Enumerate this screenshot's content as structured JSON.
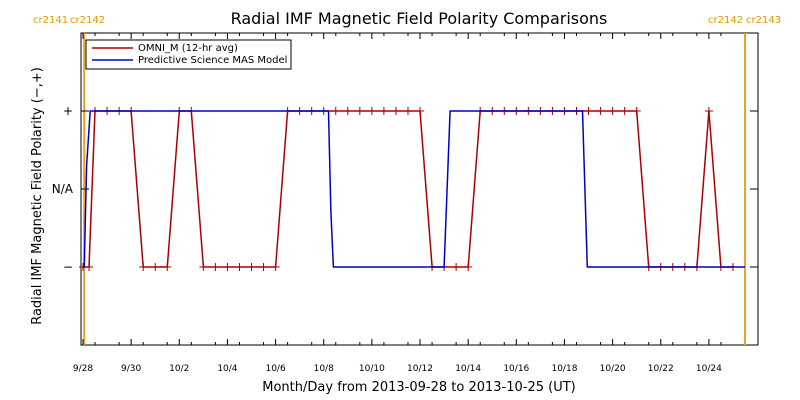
{
  "chart_data": {
    "type": "line",
    "title": "Radial IMF Magnetic Field Polarity Comparisons",
    "xlabel": "Month/Day from 2013-09-28 to 2013-10-25 (UT)",
    "ylabel": "Radial IMF Magnetic Field Polarity (−,+)",
    "x_unit": "day",
    "xlim": [
      0,
      27.75
    ],
    "ylim": [
      -2,
      2
    ],
    "x_ticks": [
      {
        "x": 0,
        "label": "9/28"
      },
      {
        "x": 2,
        "label": "9/30"
      },
      {
        "x": 4,
        "label": "10/2"
      },
      {
        "x": 6,
        "label": "10/4"
      },
      {
        "x": 8,
        "label": "10/6"
      },
      {
        "x": 10,
        "label": "10/8"
      },
      {
        "x": 12,
        "label": "10/10"
      },
      {
        "x": 14,
        "label": "10/12"
      },
      {
        "x": 16,
        "label": "10/14"
      },
      {
        "x": 18,
        "label": "10/16"
      },
      {
        "x": 20,
        "label": "10/18"
      },
      {
        "x": 22,
        "label": "10/20"
      },
      {
        "x": 24,
        "label": "10/22"
      },
      {
        "x": 26,
        "label": "10/24"
      }
    ],
    "y_ticks": [
      {
        "y": 1,
        "label": "+"
      },
      {
        "y": 0,
        "label": "N/A"
      },
      {
        "y": -1,
        "label": "−"
      }
    ],
    "carrington_markers": [
      {
        "x": 0.05,
        "left_label": "cr2141",
        "right_label": "cr2142"
      },
      {
        "x": 27.5,
        "left_label": "cr2142",
        "right_label": "cr2143"
      }
    ],
    "legend": {
      "placement": "top-left"
    },
    "series": [
      {
        "name": "OMNI_M (12-hr avg)",
        "color": "#aa0000",
        "markers": true,
        "points": [
          [
            0.0,
            -1
          ],
          [
            0.25,
            -1
          ],
          [
            0.5,
            1
          ],
          [
            1.0,
            1
          ],
          [
            1.5,
            1
          ],
          [
            2.0,
            1
          ],
          [
            2.5,
            -1
          ],
          [
            3.0,
            -1
          ],
          [
            3.5,
            -1
          ],
          [
            4.0,
            1
          ],
          [
            4.5,
            1
          ],
          [
            5.0,
            -1
          ],
          [
            5.5,
            -1
          ],
          [
            6.0,
            -1
          ],
          [
            6.5,
            -1
          ],
          [
            7.0,
            -1
          ],
          [
            7.5,
            -1
          ],
          [
            8.0,
            -1
          ],
          [
            8.5,
            1
          ],
          [
            9.0,
            1
          ],
          [
            9.5,
            1
          ],
          [
            10.0,
            1
          ],
          [
            10.5,
            1
          ],
          [
            11.0,
            1
          ],
          [
            11.5,
            1
          ],
          [
            12.0,
            1
          ],
          [
            12.5,
            1
          ],
          [
            13.0,
            1
          ],
          [
            13.5,
            1
          ],
          [
            14.0,
            1
          ],
          [
            14.5,
            -1
          ],
          [
            15.0,
            -1
          ],
          [
            15.5,
            -1
          ],
          [
            16.0,
            -1
          ],
          [
            16.5,
            1
          ],
          [
            17.0,
            1
          ],
          [
            17.5,
            1
          ],
          [
            18.0,
            1
          ],
          [
            18.5,
            1
          ],
          [
            19.0,
            1
          ],
          [
            19.5,
            1
          ],
          [
            20.0,
            1
          ],
          [
            20.5,
            1
          ],
          [
            21.0,
            1
          ],
          [
            21.5,
            1
          ],
          [
            22.0,
            1
          ],
          [
            22.5,
            1
          ],
          [
            23.0,
            1
          ],
          [
            23.5,
            -1
          ],
          [
            24.0,
            -1
          ],
          [
            24.5,
            -1
          ],
          [
            25.0,
            -1
          ],
          [
            25.5,
            -1
          ],
          [
            26.0,
            1
          ],
          [
            26.5,
            -1
          ],
          [
            27.0,
            -1
          ]
        ]
      },
      {
        "name": "Predictive Science MAS Model",
        "color": "#0000cc",
        "markers": false,
        "points": [
          [
            0.0,
            -1
          ],
          [
            0.05,
            -1
          ],
          [
            0.15,
            0.3
          ],
          [
            0.3,
            1
          ],
          [
            10.2,
            1
          ],
          [
            10.3,
            -0.3
          ],
          [
            10.4,
            -1
          ],
          [
            15.0,
            -1
          ],
          [
            15.1,
            -0.2
          ],
          [
            15.25,
            1
          ],
          [
            20.75,
            1
          ],
          [
            20.85,
            0
          ],
          [
            20.95,
            -1
          ],
          [
            27.5,
            -1
          ]
        ]
      }
    ]
  }
}
